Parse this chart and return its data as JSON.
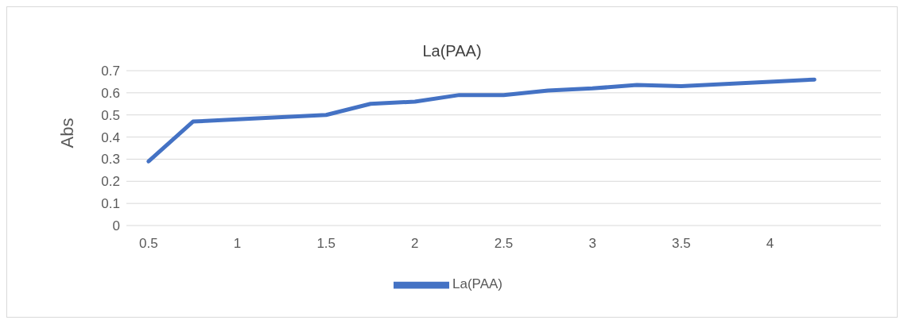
{
  "chart_data": {
    "type": "line",
    "title": "La(PAA)",
    "ylabel": "Abs",
    "x": [
      0.5,
      0.75,
      1,
      1.25,
      1.5,
      1.75,
      2,
      2.25,
      2.5,
      2.75,
      3,
      3.25,
      3.5,
      3.75,
      4,
      4.25
    ],
    "series": [
      {
        "name": "La(PAA)",
        "color": "#4472c4",
        "values": [
          0.29,
          0.47,
          0.48,
          0.49,
          0.5,
          0.55,
          0.56,
          0.59,
          0.59,
          0.61,
          0.62,
          0.635,
          0.63,
          0.64,
          0.65,
          0.66
        ]
      }
    ],
    "xlim": [
      0.375,
      4.625
    ],
    "xticks": [
      0.5,
      1,
      1.5,
      2,
      2.5,
      3,
      3.5,
      4
    ],
    "ylim": [
      0,
      0.7
    ],
    "yticks": [
      0,
      0.1,
      0.2,
      0.3,
      0.4,
      0.5,
      0.6,
      0.7
    ],
    "grid": "y",
    "legend": "bottom",
    "marker": "none",
    "line_style": "solid"
  }
}
